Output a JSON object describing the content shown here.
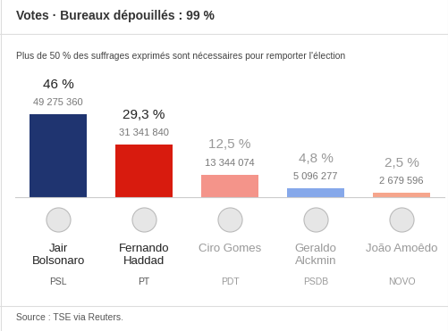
{
  "chart_data": {
    "type": "bar",
    "title": "Votes · Bureaux dépouillés : 99 %",
    "subtitle": "Plus de 50 % des suffrages exprimés sont nécessaires pour remporter l'élection",
    "categories": [
      "Jair\nBolsonaro",
      "Fernando\nHaddad",
      "Ciro Gomes",
      "Geraldo\nAlckmin",
      "João Amoêdo"
    ],
    "parties": [
      "PSL",
      "PT",
      "PDT",
      "PSDB",
      "NOVO"
    ],
    "values": [
      46,
      29.3,
      12.5,
      4.8,
      2.5
    ],
    "value_labels": [
      "46 %",
      "29,3 %",
      "12,5 %",
      "4,8 %",
      "2,5 %"
    ],
    "vote_counts": [
      "49 275 360",
      "31 341 840",
      "13 344 074",
      "5 096 277",
      "2 679 596"
    ],
    "colors": [
      "#1f3470",
      "#d81b0e",
      "#f4948a",
      "#86a8ea",
      "#f6a58c"
    ],
    "ylim": [
      0,
      50
    ],
    "data_labels": true,
    "tick_labels": false,
    "grid": false,
    "source": "Source : TSE via Reuters."
  }
}
